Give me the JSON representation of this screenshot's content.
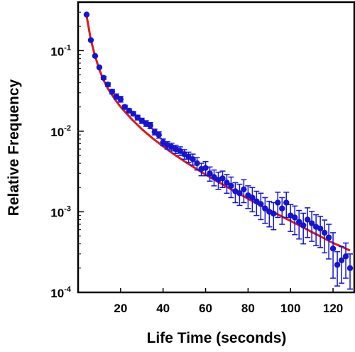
{
  "chart_data": {
    "type": "scatter",
    "title": "",
    "xlabel": "Life Time (seconds)",
    "ylabel": "Relative Frequency",
    "xlim": [
      0,
      130
    ],
    "ylim": [
      0.0001,
      0.4
    ],
    "yscale": "log",
    "grid": false,
    "legend": "none",
    "x_ticks": [
      20,
      40,
      60,
      80,
      100,
      120
    ],
    "y_ticks": [
      {
        "value": 0.1,
        "base": "10",
        "exp": "-1"
      },
      {
        "value": 0.01,
        "base": "10",
        "exp": "-2"
      },
      {
        "value": 0.001,
        "base": "10",
        "exp": "-3"
      },
      {
        "value": 0.0001,
        "base": "10",
        "exp": "-4"
      }
    ],
    "series": [
      {
        "kind": "points",
        "color": "#1414d2",
        "x": [
          4,
          6,
          8,
          10,
          12,
          14,
          16,
          18,
          20,
          22,
          24,
          26,
          28,
          30,
          32,
          34,
          36,
          38,
          40,
          42,
          44,
          46,
          48,
          50,
          52,
          54,
          56,
          58,
          60,
          62,
          64,
          66,
          68,
          70,
          72,
          74,
          76,
          78,
          80,
          82,
          84,
          86,
          88,
          90,
          92,
          94,
          96,
          98,
          100,
          102,
          104,
          106,
          108,
          110,
          112,
          114,
          116,
          118,
          120,
          122,
          124,
          126,
          128
        ],
        "y": [
          0.28,
          0.135,
          0.086,
          0.062,
          0.046,
          0.038,
          0.031,
          0.027,
          0.025,
          0.02,
          0.018,
          0.0165,
          0.0148,
          0.0135,
          0.0125,
          0.0118,
          0.0098,
          0.009,
          0.0073,
          0.0067,
          0.0064,
          0.006,
          0.0057,
          0.0052,
          0.0048,
          0.0045,
          0.004,
          0.0034,
          0.0035,
          0.003,
          0.0027,
          0.0025,
          0.0026,
          0.0023,
          0.0021,
          0.0018,
          0.0017,
          0.0019,
          0.0016,
          0.0015,
          0.00135,
          0.00125,
          0.0011,
          0.001,
          0.00095,
          0.0013,
          0.0011,
          0.0013,
          0.0009,
          0.00085,
          0.00075,
          0.00068,
          0.0008,
          0.00072,
          0.00065,
          0.00062,
          0.00055,
          0.00048,
          0.00035,
          0.00022,
          0.00025,
          0.00028,
          0.0002
        ],
        "err_lo": [
          0.28,
          0.135,
          0.086,
          0.062,
          0.044,
          0.036,
          0.029,
          0.025,
          0.023,
          0.019,
          0.017,
          0.0155,
          0.0138,
          0.0125,
          0.0115,
          0.0108,
          0.009,
          0.0082,
          0.0066,
          0.006,
          0.0057,
          0.0053,
          0.005,
          0.0045,
          0.0041,
          0.0038,
          0.0033,
          0.0028,
          0.0028,
          0.0024,
          0.0021,
          0.0019,
          0.002,
          0.0017,
          0.0015,
          0.0013,
          0.0012,
          0.0013,
          0.0011,
          0.001,
          0.0009,
          0.0008,
          0.00072,
          0.00065,
          0.0006,
          0.00085,
          0.0007,
          0.00085,
          0.00057,
          0.00052,
          0.00046,
          0.0004,
          0.00048,
          0.00043,
          0.00038,
          0.00036,
          0.00031,
          0.00026,
          0.00015,
          0.00012,
          0.00013,
          0.00015,
          0.00011
        ],
        "err_hi": [
          0.28,
          0.135,
          0.086,
          0.062,
          0.048,
          0.04,
          0.033,
          0.029,
          0.027,
          0.021,
          0.019,
          0.0175,
          0.0158,
          0.0145,
          0.0135,
          0.0128,
          0.0106,
          0.0098,
          0.008,
          0.0074,
          0.0071,
          0.0067,
          0.0064,
          0.0059,
          0.0055,
          0.0052,
          0.0047,
          0.004,
          0.0042,
          0.0036,
          0.0033,
          0.0031,
          0.0032,
          0.0029,
          0.0027,
          0.0023,
          0.0022,
          0.0025,
          0.0021,
          0.002,
          0.0018,
          0.0017,
          0.0015,
          0.00135,
          0.0013,
          0.00175,
          0.0015,
          0.00175,
          0.00123,
          0.00118,
          0.00104,
          0.00096,
          0.00112,
          0.00101,
          0.00092,
          0.00088,
          0.00079,
          0.0007,
          0.00055,
          0.00032,
          0.00037,
          0.00041,
          0.0003
        ]
      },
      {
        "kind": "fit-line",
        "color": "#e01818",
        "x": [
          4,
          6,
          8,
          10,
          12,
          14,
          16,
          18,
          20,
          25,
          30,
          35,
          40,
          45,
          50,
          55,
          60,
          65,
          70,
          75,
          80,
          85,
          90,
          95,
          100,
          105,
          110,
          115,
          120,
          125,
          128
        ],
        "y": [
          0.27,
          0.135,
          0.086,
          0.058,
          0.043,
          0.034,
          0.028,
          0.0235,
          0.0201,
          0.0143,
          0.0106,
          0.0082,
          0.0065,
          0.0052,
          0.00425,
          0.0035,
          0.0029,
          0.00243,
          0.00204,
          0.00172,
          0.00145,
          0.00123,
          0.00105,
          0.0009,
          0.00077,
          0.00066,
          0.00056,
          0.00048,
          0.00041,
          0.00036,
          0.00033
        ]
      }
    ]
  }
}
